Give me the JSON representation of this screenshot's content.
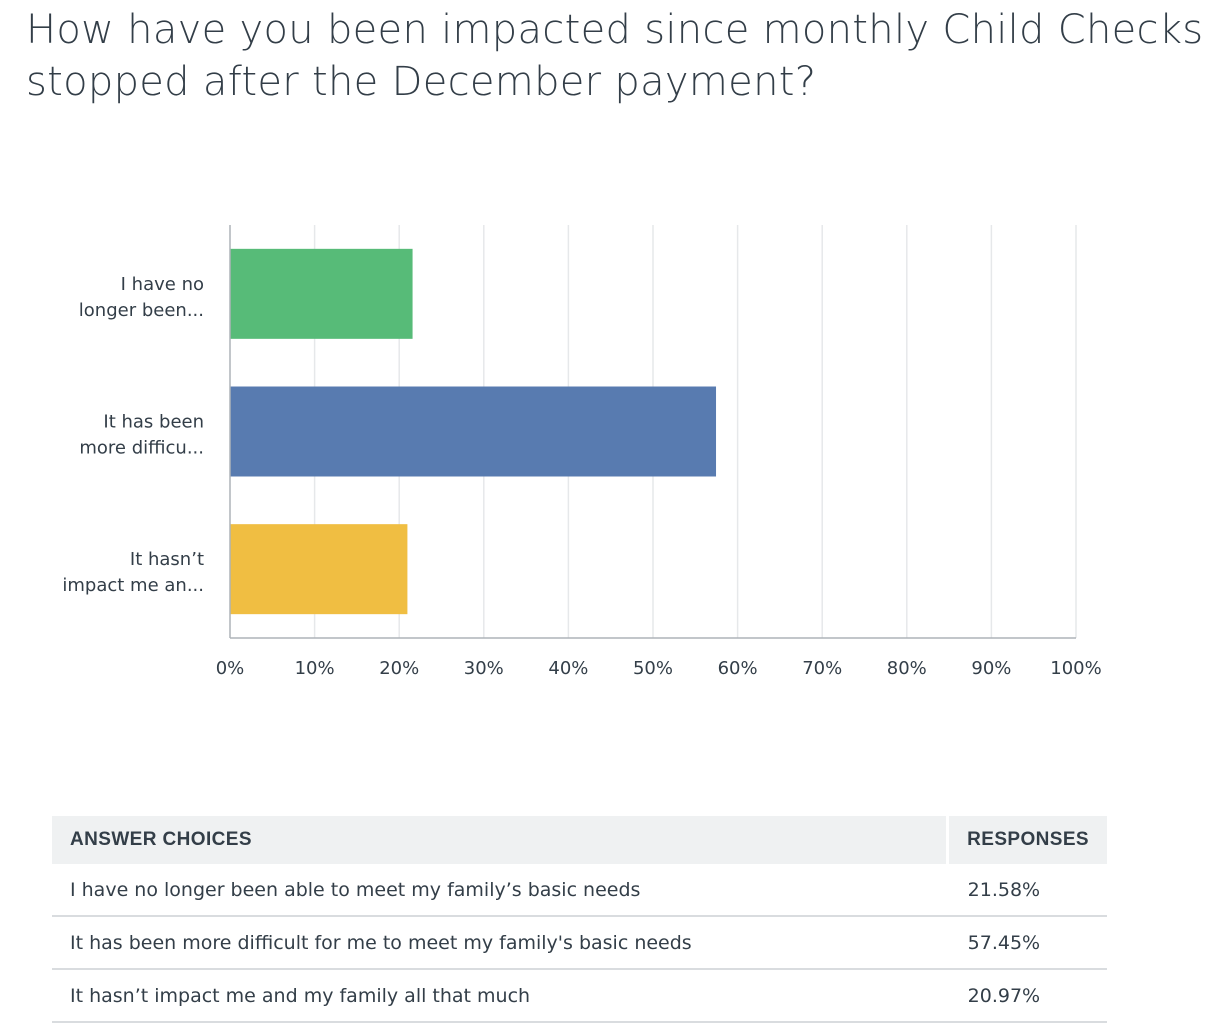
{
  "title": "How have you been impacted since monthly Child Checks stopped after the December payment?",
  "chart_data": {
    "type": "bar",
    "orientation": "horizontal",
    "categories": [
      "I have no longer been...",
      "It has been more difficu...",
      "It hasn’t impact me an..."
    ],
    "category_label_lines": [
      [
        "I have no",
        "longer been..."
      ],
      [
        "It has been",
        "more difficu..."
      ],
      [
        "It hasn’t",
        "impact me an..."
      ]
    ],
    "values": [
      21.58,
      57.45,
      20.97
    ],
    "colors": [
      "#57bb78",
      "#587bb0",
      "#f0be42"
    ],
    "xlim": [
      0,
      100
    ],
    "x_ticks": [
      0,
      10,
      20,
      30,
      40,
      50,
      60,
      70,
      80,
      90,
      100
    ],
    "x_tick_labels": [
      "0%",
      "10%",
      "20%",
      "30%",
      "40%",
      "50%",
      "60%",
      "70%",
      "80%",
      "90%",
      "100%"
    ],
    "grid": true
  },
  "table": {
    "headers": [
      "ANSWER CHOICES",
      "RESPONSES"
    ],
    "rows": [
      {
        "choice": "I have no longer been able to meet my family’s basic needs",
        "response": "21.58%"
      },
      {
        "choice": "It has been more difficult for me to meet my family's basic needs",
        "response": "57.45%"
      },
      {
        "choice": "It hasn’t impact me and my family all that much",
        "response": "20.97%"
      }
    ]
  }
}
